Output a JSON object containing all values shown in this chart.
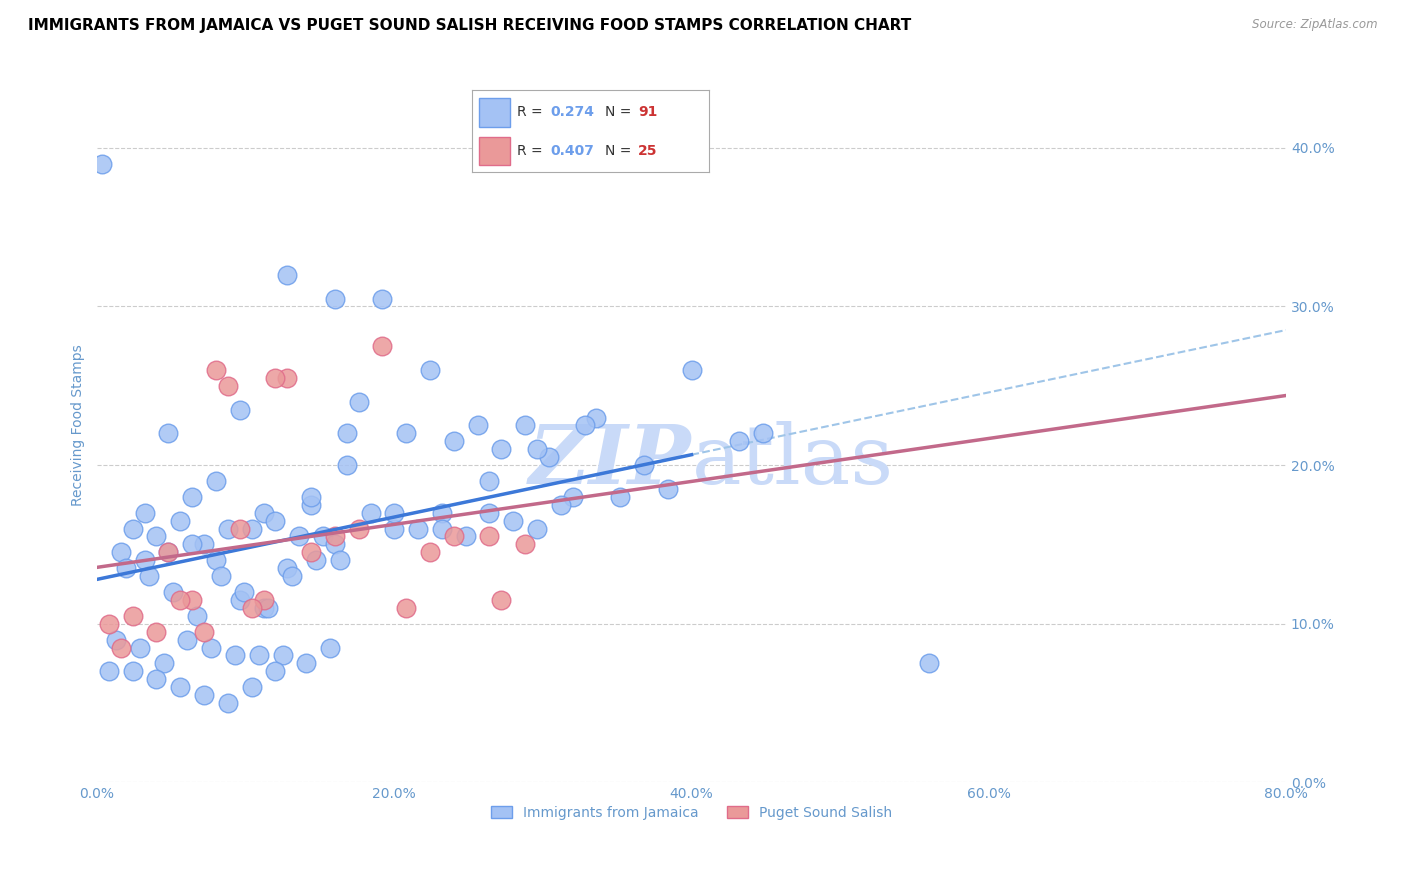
{
  "title": "IMMIGRANTS FROM JAMAICA VS PUGET SOUND SALISH RECEIVING FOOD STAMPS CORRELATION CHART",
  "source": "Source: ZipAtlas.com",
  "ylabel": "Receiving Food Stamps",
  "legend_blue_label": "Immigrants from Jamaica",
  "legend_pink_label": "Puget Sound Salish",
  "legend_blue_R": "0.274",
  "legend_blue_N": "91",
  "legend_pink_R": "0.407",
  "legend_pink_N": "25",
  "blue_scatter_x": [
    0.5,
    0.8,
    1.0,
    1.2,
    1.4,
    1.6,
    1.8,
    2.0,
    2.2,
    2.5,
    0.3,
    0.6,
    1.1,
    1.3,
    1.5,
    1.7,
    1.9,
    2.1,
    2.4,
    2.7,
    0.4,
    0.7,
    0.9,
    1.05,
    1.25,
    1.45,
    1.65,
    1.85,
    2.05,
    2.3,
    0.2,
    0.35,
    0.55,
    0.75,
    0.95,
    1.15,
    1.35,
    1.55,
    1.75,
    1.95,
    0.15,
    0.25,
    0.45,
    0.65,
    0.85,
    1.05,
    1.25,
    1.45,
    1.65,
    1.85,
    0.1,
    0.2,
    0.3,
    0.4,
    0.5,
    0.6,
    0.7,
    0.8,
    0.9,
    1.0,
    0.12,
    0.22,
    0.32,
    0.42,
    0.52,
    0.62,
    0.72,
    0.82,
    0.92,
    1.02,
    0.08,
    0.18,
    0.28,
    0.38,
    0.48,
    0.58,
    0.68,
    0.78,
    0.88,
    0.98,
    0.05,
    0.15,
    2.8,
    3.5,
    0.25,
    0.35,
    0.45,
    0.55,
    0.65,
    0.75,
    0.02
  ],
  "blue_scatter_y": [
    19.0,
    32.0,
    30.5,
    30.5,
    26.0,
    22.5,
    22.5,
    18.0,
    18.0,
    26.0,
    22.0,
    23.5,
    24.0,
    22.0,
    21.5,
    21.0,
    20.5,
    23.0,
    18.5,
    21.5,
    18.0,
    17.0,
    17.5,
    20.0,
    16.0,
    17.0,
    19.0,
    21.0,
    22.5,
    20.0,
    17.0,
    16.5,
    16.0,
    16.5,
    15.5,
    17.0,
    16.0,
    15.5,
    16.5,
    17.5,
    16.0,
    15.5,
    15.0,
    16.0,
    15.5,
    22.0,
    17.0,
    16.0,
    17.0,
    16.0,
    14.5,
    14.0,
    14.5,
    15.0,
    14.0,
    11.5,
    11.0,
    13.5,
    18.0,
    15.0,
    13.5,
    13.0,
    12.0,
    10.5,
    13.0,
    12.0,
    11.0,
    13.0,
    14.0,
    14.0,
    9.0,
    8.5,
    7.5,
    9.0,
    8.5,
    8.0,
    8.0,
    8.0,
    7.5,
    8.5,
    7.0,
    7.0,
    22.0,
    7.5,
    6.5,
    6.0,
    5.5,
    5.0,
    6.0,
    7.0,
    39.0
  ],
  "pink_scatter_x": [
    0.05,
    0.5,
    0.8,
    1.0,
    1.2,
    1.5,
    1.8,
    0.3,
    0.55,
    0.75,
    0.25,
    0.6,
    1.1,
    1.4,
    1.65,
    0.9,
    1.3,
    0.7,
    0.4,
    0.15,
    0.1,
    0.35,
    1.7,
    0.45,
    0.65
  ],
  "pink_scatter_y": [
    10.0,
    26.0,
    25.5,
    15.5,
    27.5,
    15.5,
    15.0,
    14.5,
    25.0,
    25.5,
    9.5,
    16.0,
    16.0,
    14.5,
    15.5,
    14.5,
    11.0,
    11.5,
    11.5,
    10.5,
    8.5,
    11.5,
    11.5,
    9.5,
    11.0
  ],
  "xmin": 0.0,
  "xmax": 80.0,
  "ymin": 0.0,
  "ymax": 45.0,
  "xticks": [
    0,
    20,
    40,
    60,
    80
  ],
  "yticks": [
    0,
    10,
    20,
    30,
    40
  ],
  "blue_scatter_color": "#a4c2f4",
  "blue_scatter_edge": "#6d9eeb",
  "pink_scatter_color": "#ea9999",
  "pink_scatter_edge": "#e06c8a",
  "blue_line_color": "#3c78d8",
  "pink_line_color": "#c2698a",
  "dashed_line_color": "#9fc5e8",
  "watermark_color": "#c9daf8",
  "background_color": "#ffffff",
  "tick_color": "#6699cc",
  "grid_color": "#cccccc",
  "title_color": "#000000",
  "source_color": "#999999",
  "title_fontsize": 11,
  "axis_label_fontsize": 10,
  "tick_fontsize": 10
}
